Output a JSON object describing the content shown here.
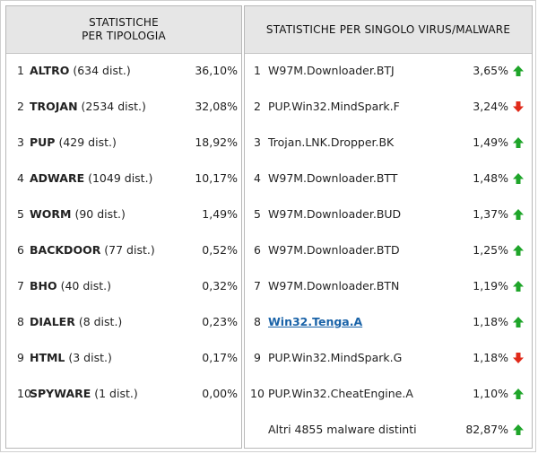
{
  "left_panel": {
    "header_line1": "STATISTICHE",
    "header_line2": "PER TIPOLOGIA",
    "rows": [
      {
        "num": "1",
        "name": "ALTRO",
        "detail": " (634 dist.)",
        "pct": "36,10%"
      },
      {
        "num": "2",
        "name": "TROJAN",
        "detail": " (2534 dist.)",
        "pct": "32,08%"
      },
      {
        "num": "3",
        "name": "PUP",
        "detail": " (429 dist.)",
        "pct": "18,92%"
      },
      {
        "num": "4",
        "name": "ADWARE",
        "detail": " (1049 dist.)",
        "pct": "10,17%"
      },
      {
        "num": "5",
        "name": "WORM",
        "detail": " (90 dist.)",
        "pct": "1,49%"
      },
      {
        "num": "6",
        "name": "BACKDOOR",
        "detail": " (77 dist.)",
        "pct": "0,52%"
      },
      {
        "num": "7",
        "name": "BHO",
        "detail": " (40 dist.)",
        "pct": "0,32%"
      },
      {
        "num": "8",
        "name": "DIALER",
        "detail": " (8 dist.)",
        "pct": "0,23%"
      },
      {
        "num": "9",
        "name": "HTML",
        "detail": " (3 dist.)",
        "pct": "0,17%"
      },
      {
        "num": "10",
        "name": "SPYWARE",
        "detail": " (1 dist.)",
        "pct": "0,00%"
      }
    ]
  },
  "right_panel": {
    "header": "STATISTICHE PER SINGOLO VIRUS/MALWARE",
    "rows": [
      {
        "num": "1",
        "name": "W97M.Downloader.BTJ",
        "pct": "3,65%",
        "trend": "up"
      },
      {
        "num": "2",
        "name": "PUP.Win32.MindSpark.F",
        "pct": "3,24%",
        "trend": "down"
      },
      {
        "num": "3",
        "name": "Trojan.LNK.Dropper.BK",
        "pct": "1,49%",
        "trend": "up"
      },
      {
        "num": "4",
        "name": "W97M.Downloader.BTT",
        "pct": "1,48%",
        "trend": "up"
      },
      {
        "num": "5",
        "name": "W97M.Downloader.BUD",
        "pct": "1,37%",
        "trend": "up"
      },
      {
        "num": "6",
        "name": "W97M.Downloader.BTD",
        "pct": "1,25%",
        "trend": "up"
      },
      {
        "num": "7",
        "name": "W97M.Downloader.BTN",
        "pct": "1,19%",
        "trend": "up"
      },
      {
        "num": "8",
        "name": "Win32.Tenga.A",
        "pct": "1,18%",
        "trend": "up",
        "link": true
      },
      {
        "num": "9",
        "name": "PUP.Win32.MindSpark.G",
        "pct": "1,18%",
        "trend": "down"
      },
      {
        "num": "10",
        "name": "PUP.Win32.CheatEngine.A",
        "pct": "1,10%",
        "trend": "up"
      }
    ],
    "others": {
      "label": "Altri 4855 malware distinti",
      "pct": "82,87%",
      "trend": "up"
    }
  },
  "colors": {
    "up": "#1fa52a",
    "down": "#e02a1a",
    "link": "#1a63a8",
    "header_bg": "#e6e6e6"
  },
  "icons": {
    "up": "green-up-arrow-icon",
    "down": "red-down-arrow-icon"
  }
}
